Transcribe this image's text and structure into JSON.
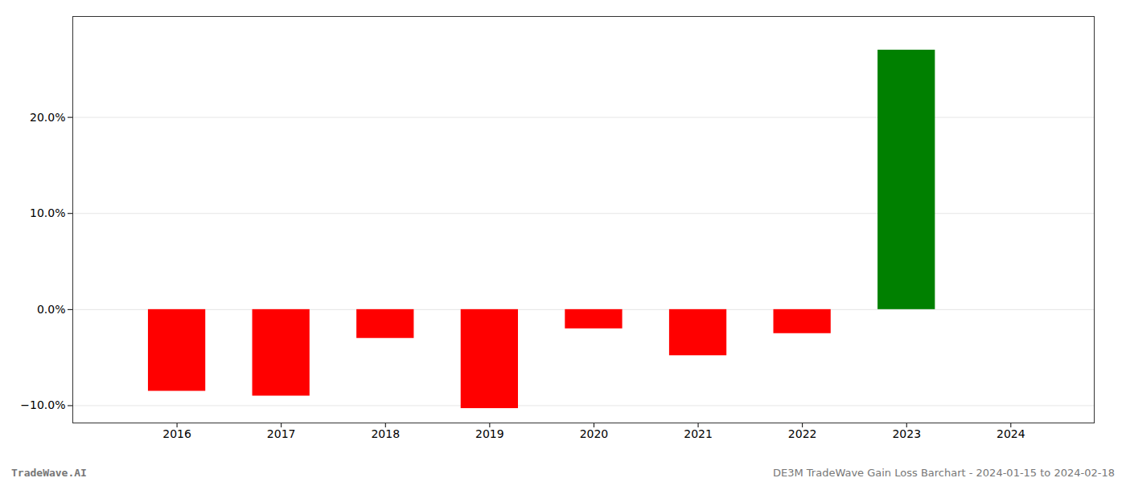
{
  "chart_data": {
    "type": "bar",
    "title": "DE3M TradeWave Gain Loss Barchart - 2024-01-15 to 2024-02-18",
    "annotations": [
      "TradeWave.AI"
    ],
    "x": [
      2016,
      2017,
      2018,
      2019,
      2020,
      2021,
      2022,
      2023,
      2024
    ],
    "values": [
      -0.085,
      -0.09,
      -0.03,
      -0.103,
      -0.02,
      -0.048,
      -0.025,
      0.27,
      0.0
    ],
    "colors": [
      "#ff0000",
      "#ff0000",
      "#ff0000",
      "#ff0000",
      "#ff0000",
      "#ff0000",
      "#ff0000",
      "#008000",
      "#ffffff"
    ],
    "xlim": [
      2015.0,
      2024.8
    ],
    "xticks": [
      2016,
      2017,
      2018,
      2019,
      2020,
      2021,
      2022,
      2023,
      2024
    ],
    "ylim": [
      -0.118,
      0.305
    ],
    "yticks": [
      {
        "value": -0.1,
        "label": "−10.0%"
      },
      {
        "value": 0.0,
        "label": "0.0%"
      },
      {
        "value": 0.1,
        "label": "10.0%"
      },
      {
        "value": 0.2,
        "label": "20.0%"
      }
    ],
    "grid": true
  }
}
